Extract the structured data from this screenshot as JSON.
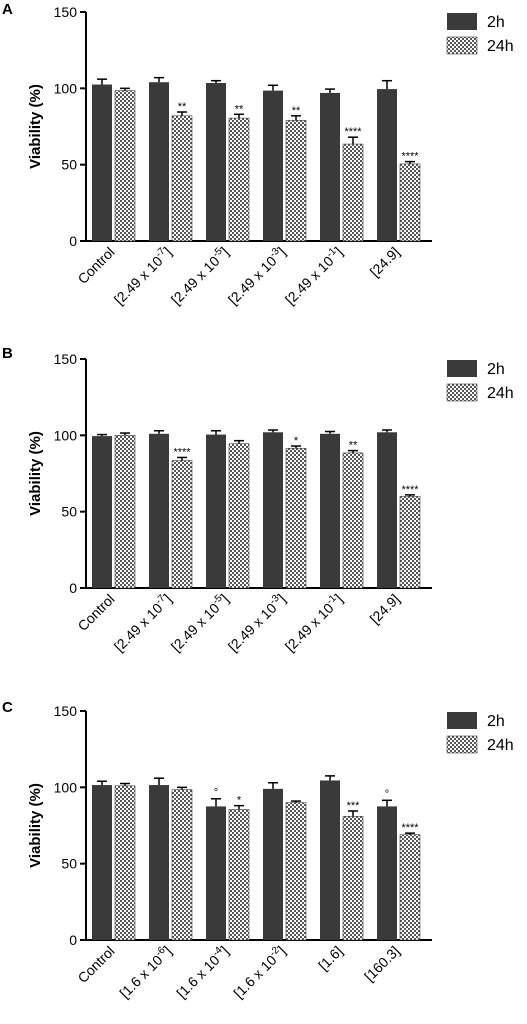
{
  "colors": {
    "bar_2h": "#3a3a3a",
    "bar_24h_fg": "#555555",
    "bar_24h_bg": "#ffffff",
    "axis": "#000000"
  },
  "chart_data": [
    {
      "panel": "A",
      "type": "bar",
      "ylabel": "Viability (%)",
      "ylim": [
        0,
        150
      ],
      "yticks": [
        0,
        50,
        100,
        150
      ],
      "categories": [
        {
          "text": "Control",
          "sup": ""
        },
        {
          "text": "[2.49 x 10",
          "sup": "-7",
          "tail": "]"
        },
        {
          "text": "[2.49 x 10",
          "sup": "-5",
          "tail": "]"
        },
        {
          "text": "[2.49 x 10",
          "sup": "-3",
          "tail": "]"
        },
        {
          "text": "[2.49 x 10",
          "sup": "-1",
          "tail": "]"
        },
        {
          "text": "[24.9]",
          "sup": ""
        }
      ],
      "series": [
        {
          "name": "2h",
          "values": [
            102.5,
            104,
            103.5,
            98.5,
            97,
            99.5
          ],
          "errors": [
            3.5,
            3,
            1.5,
            3.5,
            2.5,
            5.5
          ],
          "labels": [
            "",
            "",
            "",
            "",
            "",
            ""
          ]
        },
        {
          "name": "24h",
          "values": [
            98.5,
            82,
            80.5,
            79,
            63.5,
            50.5
          ],
          "errors": [
            1.5,
            2.5,
            2.5,
            3,
            4.5,
            1.5
          ],
          "labels": [
            "",
            "**",
            "**",
            "**",
            "****",
            "****"
          ]
        }
      ],
      "legend_position": "top-right"
    },
    {
      "panel": "B",
      "type": "bar",
      "ylabel": "Viability (%)",
      "ylim": [
        0,
        150
      ],
      "yticks": [
        0,
        50,
        100,
        150
      ],
      "categories": [
        {
          "text": "Control",
          "sup": ""
        },
        {
          "text": "[2.49 x 10",
          "sup": "-7",
          "tail": "]"
        },
        {
          "text": "[2.49 x 10",
          "sup": "-5",
          "tail": "]"
        },
        {
          "text": "[2.49 x 10",
          "sup": "-3",
          "tail": "]"
        },
        {
          "text": "[2.49 x 10",
          "sup": "-1",
          "tail": "]"
        },
        {
          "text": "[24.9]",
          "sup": ""
        }
      ],
      "series": [
        {
          "name": "2h",
          "values": [
            99.5,
            101,
            100.5,
            102,
            101,
            102
          ],
          "errors": [
            1,
            2,
            2.5,
            1.5,
            1.5,
            1.5
          ],
          "labels": [
            "",
            "",
            "",
            "",
            "",
            ""
          ]
        },
        {
          "name": "24h",
          "values": [
            100,
            83.5,
            94.5,
            91.5,
            88.5,
            60
          ],
          "errors": [
            1.5,
            2,
            2,
            1.5,
            1.5,
            1
          ],
          "labels": [
            "",
            "****",
            "",
            "*",
            "**",
            "****"
          ]
        }
      ],
      "legend_position": "top-right"
    },
    {
      "panel": "C",
      "type": "bar",
      "ylabel": "Viability (%)",
      "ylim": [
        0,
        150
      ],
      "yticks": [
        0,
        50,
        100,
        150
      ],
      "categories": [
        {
          "text": "Control",
          "sup": ""
        },
        {
          "text": "[1.6 x 10",
          "sup": "-6",
          "tail": "]"
        },
        {
          "text": "[1.6 x 10",
          "sup": "-4",
          "tail": "]"
        },
        {
          "text": "[1.6 x 10",
          "sup": "-2",
          "tail": "]"
        },
        {
          "text": "[1.6]",
          "sup": ""
        },
        {
          "text": "[160.3]",
          "sup": ""
        }
      ],
      "series": [
        {
          "name": "2h",
          "values": [
            101.5,
            101.5,
            87.5,
            99,
            104.5,
            87.5
          ],
          "errors": [
            2.5,
            4.5,
            5,
            4,
            3,
            4
          ],
          "labels": [
            "",
            "",
            "°",
            "",
            "",
            "°"
          ]
        },
        {
          "name": "24h",
          "values": [
            101,
            98.5,
            85.5,
            90,
            81,
            69
          ],
          "errors": [
            1.5,
            1.5,
            2.5,
            1,
            3.5,
            1
          ],
          "labels": [
            "",
            "",
            "*",
            "",
            "***",
            "****"
          ]
        }
      ],
      "legend_position": "top-right"
    }
  ]
}
